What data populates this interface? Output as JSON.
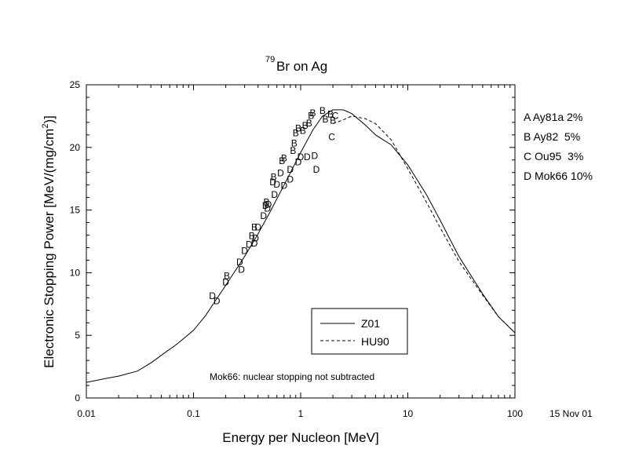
{
  "chart_data": {
    "type": "line",
    "title_sup": "79",
    "title": "Br on Ag",
    "xlabel": "Energy per Nucleon [MeV]",
    "ylabel_main": "Electronic Stopping Power [MeV/(mg/cm",
    "ylabel_sup": "2",
    "ylabel_end": ")]",
    "x_scale": "log",
    "xlim": [
      0.01,
      100
    ],
    "ylim": [
      0,
      25
    ],
    "x_ticks": [
      {
        "value": 0.01,
        "label": "0.01"
      },
      {
        "value": 0.1,
        "label": "0.1"
      },
      {
        "value": 1,
        "label": "1"
      },
      {
        "value": 10,
        "label": "10"
      },
      {
        "value": 100,
        "label": "100"
      }
    ],
    "y_ticks": [
      {
        "value": 0,
        "label": "0"
      },
      {
        "value": 5,
        "label": "5"
      },
      {
        "value": 10,
        "label": "10"
      },
      {
        "value": 15,
        "label": "15"
      },
      {
        "value": 20,
        "label": "20"
      },
      {
        "value": 25,
        "label": "25"
      }
    ],
    "series": [
      {
        "name": "Z01",
        "style": "solid",
        "points": [
          [
            0.01,
            1.25
          ],
          [
            0.015,
            1.55
          ],
          [
            0.02,
            1.75
          ],
          [
            0.03,
            2.15
          ],
          [
            0.04,
            2.8
          ],
          [
            0.05,
            3.4
          ],
          [
            0.07,
            4.3
          ],
          [
            0.1,
            5.4
          ],
          [
            0.13,
            6.6
          ],
          [
            0.15,
            7.4
          ],
          [
            0.2,
            9.0
          ],
          [
            0.3,
            11.3
          ],
          [
            0.4,
            13.1
          ],
          [
            0.5,
            14.6
          ],
          [
            0.7,
            17.0
          ],
          [
            1.0,
            19.6
          ],
          [
            1.3,
            21.4
          ],
          [
            1.6,
            22.5
          ],
          [
            2.0,
            23.0
          ],
          [
            2.5,
            23.0
          ],
          [
            3.0,
            22.7
          ],
          [
            4.0,
            21.8
          ],
          [
            5.0,
            21.0
          ],
          [
            7.0,
            20.2
          ],
          [
            10.0,
            18.6
          ],
          [
            15.0,
            16.2
          ],
          [
            20.0,
            14.2
          ],
          [
            30.0,
            11.3
          ],
          [
            50.0,
            8.3
          ],
          [
            70.0,
            6.5
          ],
          [
            100.0,
            5.2
          ]
        ]
      },
      {
        "name": "HU90",
        "style": "dashed",
        "points": [
          [
            2.0,
            21.9
          ],
          [
            2.5,
            22.2
          ],
          [
            3.0,
            22.5
          ],
          [
            4.0,
            22.3
          ],
          [
            5.0,
            21.9
          ],
          [
            7.0,
            20.6
          ],
          [
            10.0,
            18.3
          ],
          [
            15.0,
            15.6
          ],
          [
            20.0,
            13.6
          ],
          [
            30.0,
            10.9
          ],
          [
            50.0,
            8.2
          ],
          [
            70.0,
            6.5
          ],
          [
            100.0,
            5.2
          ]
        ]
      }
    ],
    "data_markers": [
      {
        "x": 0.15,
        "y": 8.2,
        "label": "D"
      },
      {
        "x": 0.165,
        "y": 7.8,
        "label": "D"
      },
      {
        "x": 0.2,
        "y": 9.3,
        "label": "D"
      },
      {
        "x": 0.205,
        "y": 9.8,
        "label": "B"
      },
      {
        "x": 0.27,
        "y": 10.9,
        "label": "D"
      },
      {
        "x": 0.28,
        "y": 10.3,
        "label": "D"
      },
      {
        "x": 0.3,
        "y": 11.8,
        "label": "D"
      },
      {
        "x": 0.33,
        "y": 12.3,
        "label": "D"
      },
      {
        "x": 0.35,
        "y": 13.0,
        "label": "B"
      },
      {
        "x": 0.37,
        "y": 12.4,
        "label": "D"
      },
      {
        "x": 0.38,
        "y": 12.8,
        "label": "D"
      },
      {
        "x": 0.37,
        "y": 13.7,
        "label": "B"
      },
      {
        "x": 0.4,
        "y": 13.7,
        "label": "D"
      },
      {
        "x": 0.45,
        "y": 14.6,
        "label": "D"
      },
      {
        "x": 0.47,
        "y": 15.4,
        "label": "D"
      },
      {
        "x": 0.48,
        "y": 15.7,
        "label": "B"
      },
      {
        "x": 0.49,
        "y": 15.2,
        "label": "D"
      },
      {
        "x": 0.5,
        "y": 15.5,
        "label": "D"
      },
      {
        "x": 0.55,
        "y": 17.3,
        "label": "D"
      },
      {
        "x": 0.56,
        "y": 17.7,
        "label": "B"
      },
      {
        "x": 0.57,
        "y": 16.3,
        "label": "D"
      },
      {
        "x": 0.6,
        "y": 17.1,
        "label": "D"
      },
      {
        "x": 0.65,
        "y": 18.0,
        "label": "D"
      },
      {
        "x": 0.67,
        "y": 19.0,
        "label": "B"
      },
      {
        "x": 0.7,
        "y": 19.2,
        "label": "B"
      },
      {
        "x": 0.7,
        "y": 17.0,
        "label": "D"
      },
      {
        "x": 0.8,
        "y": 17.5,
        "label": "D"
      },
      {
        "x": 0.8,
        "y": 18.3,
        "label": "D"
      },
      {
        "x": 0.85,
        "y": 19.8,
        "label": "B"
      },
      {
        "x": 0.87,
        "y": 20.4,
        "label": "B"
      },
      {
        "x": 0.9,
        "y": 21.2,
        "label": "B"
      },
      {
        "x": 0.95,
        "y": 18.9,
        "label": "D"
      },
      {
        "x": 0.95,
        "y": 21.6,
        "label": "B"
      },
      {
        "x": 1.0,
        "y": 19.3,
        "label": "D"
      },
      {
        "x": 1.05,
        "y": 21.4,
        "label": "B"
      },
      {
        "x": 1.1,
        "y": 21.8,
        "label": "B"
      },
      {
        "x": 1.15,
        "y": 19.3,
        "label": "D"
      },
      {
        "x": 1.2,
        "y": 22.0,
        "label": "B"
      },
      {
        "x": 1.25,
        "y": 22.6,
        "label": "B"
      },
      {
        "x": 1.3,
        "y": 22.8,
        "label": "B"
      },
      {
        "x": 1.35,
        "y": 19.4,
        "label": "D"
      },
      {
        "x": 1.4,
        "y": 18.3,
        "label": "D"
      },
      {
        "x": 1.6,
        "y": 23.0,
        "label": "B"
      },
      {
        "x": 1.7,
        "y": 22.3,
        "label": "B"
      },
      {
        "x": 1.9,
        "y": 22.7,
        "label": "B"
      },
      {
        "x": 2.0,
        "y": 22.2,
        "label": "B"
      },
      {
        "x": 2.1,
        "y": 22.6,
        "label": "C"
      },
      {
        "x": 1.95,
        "y": 20.9,
        "label": "C"
      }
    ],
    "data_legend": [
      {
        "letter": "A",
        "text": "Ay81a 2%"
      },
      {
        "letter": "B",
        "text": "Ay82  5%"
      },
      {
        "letter": "C",
        "text": "Ou95  3%"
      },
      {
        "letter": "D",
        "text": "Mok66 10%"
      }
    ],
    "annotation": "Mok66: nuclear stopping not subtracted",
    "date_stamp": "15 Nov 01",
    "grid": false,
    "legend_position": "inside-bottom-right"
  }
}
